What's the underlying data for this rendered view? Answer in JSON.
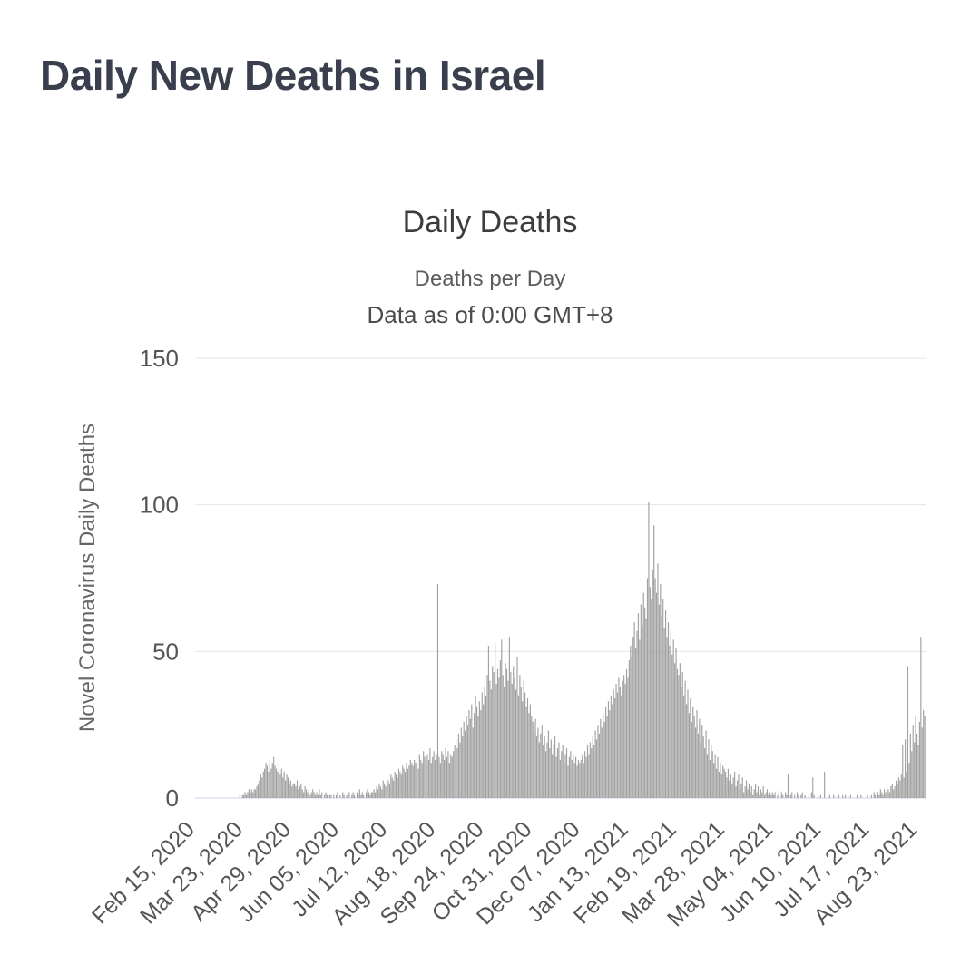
{
  "page": {
    "title": "Daily New Deaths in Israel"
  },
  "chart_data": {
    "type": "bar",
    "title": "Daily Deaths",
    "subtitle1": "Deaths per Day",
    "subtitle2": "Data as of 0:00 GMT+8",
    "ylabel": "Novel Coronavirus Daily Deaths",
    "xlabel": "",
    "ylim": [
      0,
      150
    ],
    "y_ticks": [
      0,
      50,
      100,
      150
    ],
    "grid": true,
    "legend": "none",
    "x_tick_every": 37,
    "x_tick_labels": [
      "Feb 15, 2020",
      "Mar 23, 2020",
      "Apr 29, 2020",
      "Jun 05, 2020",
      "Jul 12, 2020",
      "Aug 18, 2020",
      "Sep 24, 2020",
      "Oct 31, 2020",
      "Dec 07, 2020",
      "Jan 13, 2021",
      "Feb 19, 2021",
      "Mar 28, 2021",
      "May 04, 2021",
      "Jun 10, 2021",
      "Jul 17, 2021",
      "Aug 23, 2021"
    ],
    "bar_color": "#a1a1a1",
    "grid_color": "#e6e6e6",
    "axis_line_color": "#ccd6eb",
    "label_color": "#555555",
    "ylabel_color": "#666666",
    "title_color": "#3c3c3c",
    "page_title_color": "#3a3f4d",
    "values": [
      0,
      0,
      0,
      0,
      0,
      0,
      0,
      0,
      0,
      0,
      0,
      0,
      0,
      0,
      0,
      0,
      0,
      0,
      0,
      0,
      0,
      0,
      0,
      0,
      0,
      0,
      0,
      0,
      0,
      0,
      0,
      0,
      0,
      0,
      1,
      0,
      1,
      1,
      2,
      1,
      2,
      3,
      2,
      3,
      2,
      3,
      3,
      4,
      5,
      6,
      8,
      7,
      9,
      10,
      12,
      11,
      9,
      13,
      10,
      12,
      14,
      11,
      10,
      9,
      12,
      8,
      10,
      7,
      9,
      6,
      8,
      7,
      5,
      6,
      4,
      5,
      5,
      4,
      6,
      3,
      4,
      5,
      3,
      2,
      4,
      3,
      2,
      3,
      1,
      2,
      3,
      2,
      1,
      2,
      1,
      3,
      1,
      2,
      0,
      1,
      2,
      1,
      0,
      1,
      1,
      0,
      1,
      0,
      1,
      2,
      0,
      1,
      0,
      2,
      1,
      0,
      1,
      1,
      2,
      0,
      1,
      2,
      1,
      0,
      2,
      1,
      3,
      1,
      2,
      1,
      0,
      2,
      3,
      2,
      1,
      2,
      2,
      3,
      2,
      4,
      3,
      5,
      4,
      3,
      6,
      5,
      4,
      7,
      6,
      5,
      8,
      7,
      6,
      9,
      8,
      7,
      10,
      9,
      8,
      11,
      10,
      9,
      12,
      10,
      11,
      13,
      12,
      11,
      13,
      12,
      14,
      10,
      15,
      13,
      12,
      16,
      14,
      11,
      15,
      13,
      17,
      12,
      14,
      16,
      13,
      15,
      73,
      14,
      12,
      16,
      15,
      13,
      17,
      14,
      16,
      12,
      15,
      14,
      16,
      18,
      20,
      17,
      22,
      19,
      24,
      21,
      26,
      23,
      28,
      25,
      30,
      27,
      32,
      24,
      29,
      35,
      31,
      28,
      33,
      30,
      36,
      32,
      38,
      35,
      42,
      52,
      40,
      37,
      45,
      43,
      53,
      39,
      44,
      41,
      47,
      54,
      42,
      38,
      46,
      44,
      40,
      55,
      43,
      39,
      45,
      41,
      37,
      48,
      35,
      42,
      38,
      33,
      40,
      36,
      31,
      34,
      29,
      32,
      28,
      26,
      23,
      27,
      21,
      24,
      19,
      22,
      25,
      18,
      21,
      16,
      19,
      23,
      17,
      20,
      15,
      18,
      21,
      14,
      17,
      19,
      13,
      16,
      18,
      12,
      15,
      17,
      11,
      14,
      16,
      13,
      15,
      12,
      14,
      11,
      13,
      12,
      13,
      15,
      12,
      16,
      14,
      18,
      15,
      19,
      17,
      21,
      18,
      23,
      20,
      25,
      22,
      27,
      24,
      29,
      26,
      31,
      28,
      33,
      30,
      35,
      32,
      37,
      34,
      39,
      36,
      41,
      38,
      35,
      40,
      42,
      39,
      44,
      41,
      47,
      52,
      48,
      55,
      60,
      51,
      57,
      63,
      54,
      66,
      59,
      70,
      65,
      61,
      75,
      101,
      72,
      68,
      78,
      93,
      75,
      70,
      80,
      66,
      73,
      62,
      68,
      58,
      64,
      55,
      60,
      52,
      57,
      49,
      54,
      46,
      51,
      44,
      42,
      46,
      38,
      43,
      35,
      40,
      32,
      37,
      29,
      34,
      26,
      31,
      28,
      24,
      30,
      22,
      27,
      19,
      25,
      21,
      17,
      23,
      15,
      20,
      13,
      18,
      16,
      12,
      15,
      10,
      14,
      9,
      12,
      8,
      11,
      10,
      9,
      7,
      10,
      6,
      8,
      5,
      7,
      9,
      4,
      6,
      8,
      3,
      5,
      7,
      2,
      4,
      6,
      3,
      5,
      2,
      4,
      1,
      3,
      5,
      2,
      4,
      1,
      3,
      2,
      4,
      1,
      2,
      3,
      1,
      2,
      1,
      2,
      1,
      2,
      0,
      1,
      3,
      0,
      2,
      1,
      0,
      2,
      1,
      8,
      0,
      1,
      2,
      0,
      1,
      0,
      2,
      1,
      0,
      1,
      2,
      0,
      1,
      0,
      0,
      1,
      0,
      2,
      7,
      1,
      0,
      0,
      1,
      0,
      1,
      0,
      0,
      9,
      0,
      0,
      0,
      1,
      0,
      0,
      1,
      0,
      0,
      0,
      1,
      0,
      0,
      1,
      0,
      1,
      0,
      0,
      0,
      1,
      0,
      0,
      0,
      0,
      1,
      0,
      0,
      1,
      0,
      0,
      0,
      0,
      1,
      0,
      0,
      1,
      0,
      2,
      1,
      0,
      2,
      1,
      3,
      2,
      1,
      3,
      2,
      4,
      3,
      2,
      4,
      5,
      3,
      4,
      6,
      5,
      7,
      6,
      8,
      18,
      7,
      20,
      9,
      45,
      12,
      22,
      16,
      25,
      19,
      28,
      22,
      18,
      26,
      55,
      24,
      30,
      28
    ]
  }
}
